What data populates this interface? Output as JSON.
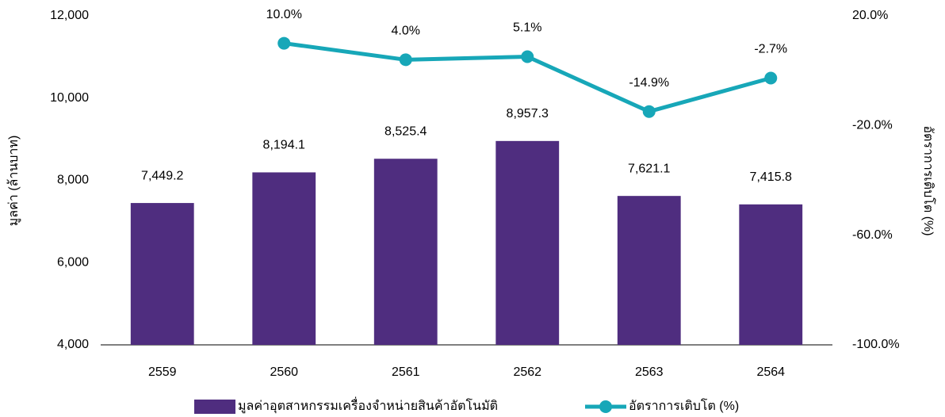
{
  "chart_data": {
    "type": "bar",
    "categories": [
      "2559",
      "2560",
      "2561",
      "2562",
      "2563",
      "2564"
    ],
    "ylabel": "มูลค่า (ล้านบาท)",
    "y2label": "อัตราการเติบโต (%)",
    "ylim": [
      4000,
      12000
    ],
    "yticks": [
      {
        "value": 4000,
        "label": "4,000"
      },
      {
        "value": 6000,
        "label": "6,000"
      },
      {
        "value": 8000,
        "label": "8,000"
      },
      {
        "value": 10000,
        "label": "10,000"
      },
      {
        "value": 12000,
        "label": "12,000"
      }
    ],
    "y2lim": [
      -100,
      20
    ],
    "y2ticks": [
      {
        "value": -100,
        "label": "-100.0%"
      },
      {
        "value": -60,
        "label": "-60.0%"
      },
      {
        "value": -20,
        "label": "-20.0%"
      },
      {
        "value": 20,
        "label": "20.0%"
      }
    ],
    "legend": "bottom",
    "series": [
      {
        "name": "มูลค่าอุตสาหกรรมเครื่องจำหน่ายสินค้าอัตโนมัติ",
        "type": "bar",
        "color": "#4f2d7f",
        "values": [
          7449.2,
          8194.1,
          8525.4,
          8957.3,
          7621.1,
          7415.8
        ],
        "value_labels": [
          "7,449.2",
          "8,194.1",
          "8,525.4",
          "8,957.3",
          "7,621.1",
          "7,415.8"
        ]
      },
      {
        "name": "อัตราการเติบโต (%)",
        "type": "line",
        "axis": "y2",
        "color": "#17a7b8",
        "values": [
          null,
          10.0,
          4.0,
          5.1,
          -14.9,
          -2.7
        ],
        "value_labels": [
          null,
          "10.0%",
          "4.0%",
          "5.1%",
          "-14.9%",
          "-2.7%"
        ]
      }
    ]
  }
}
